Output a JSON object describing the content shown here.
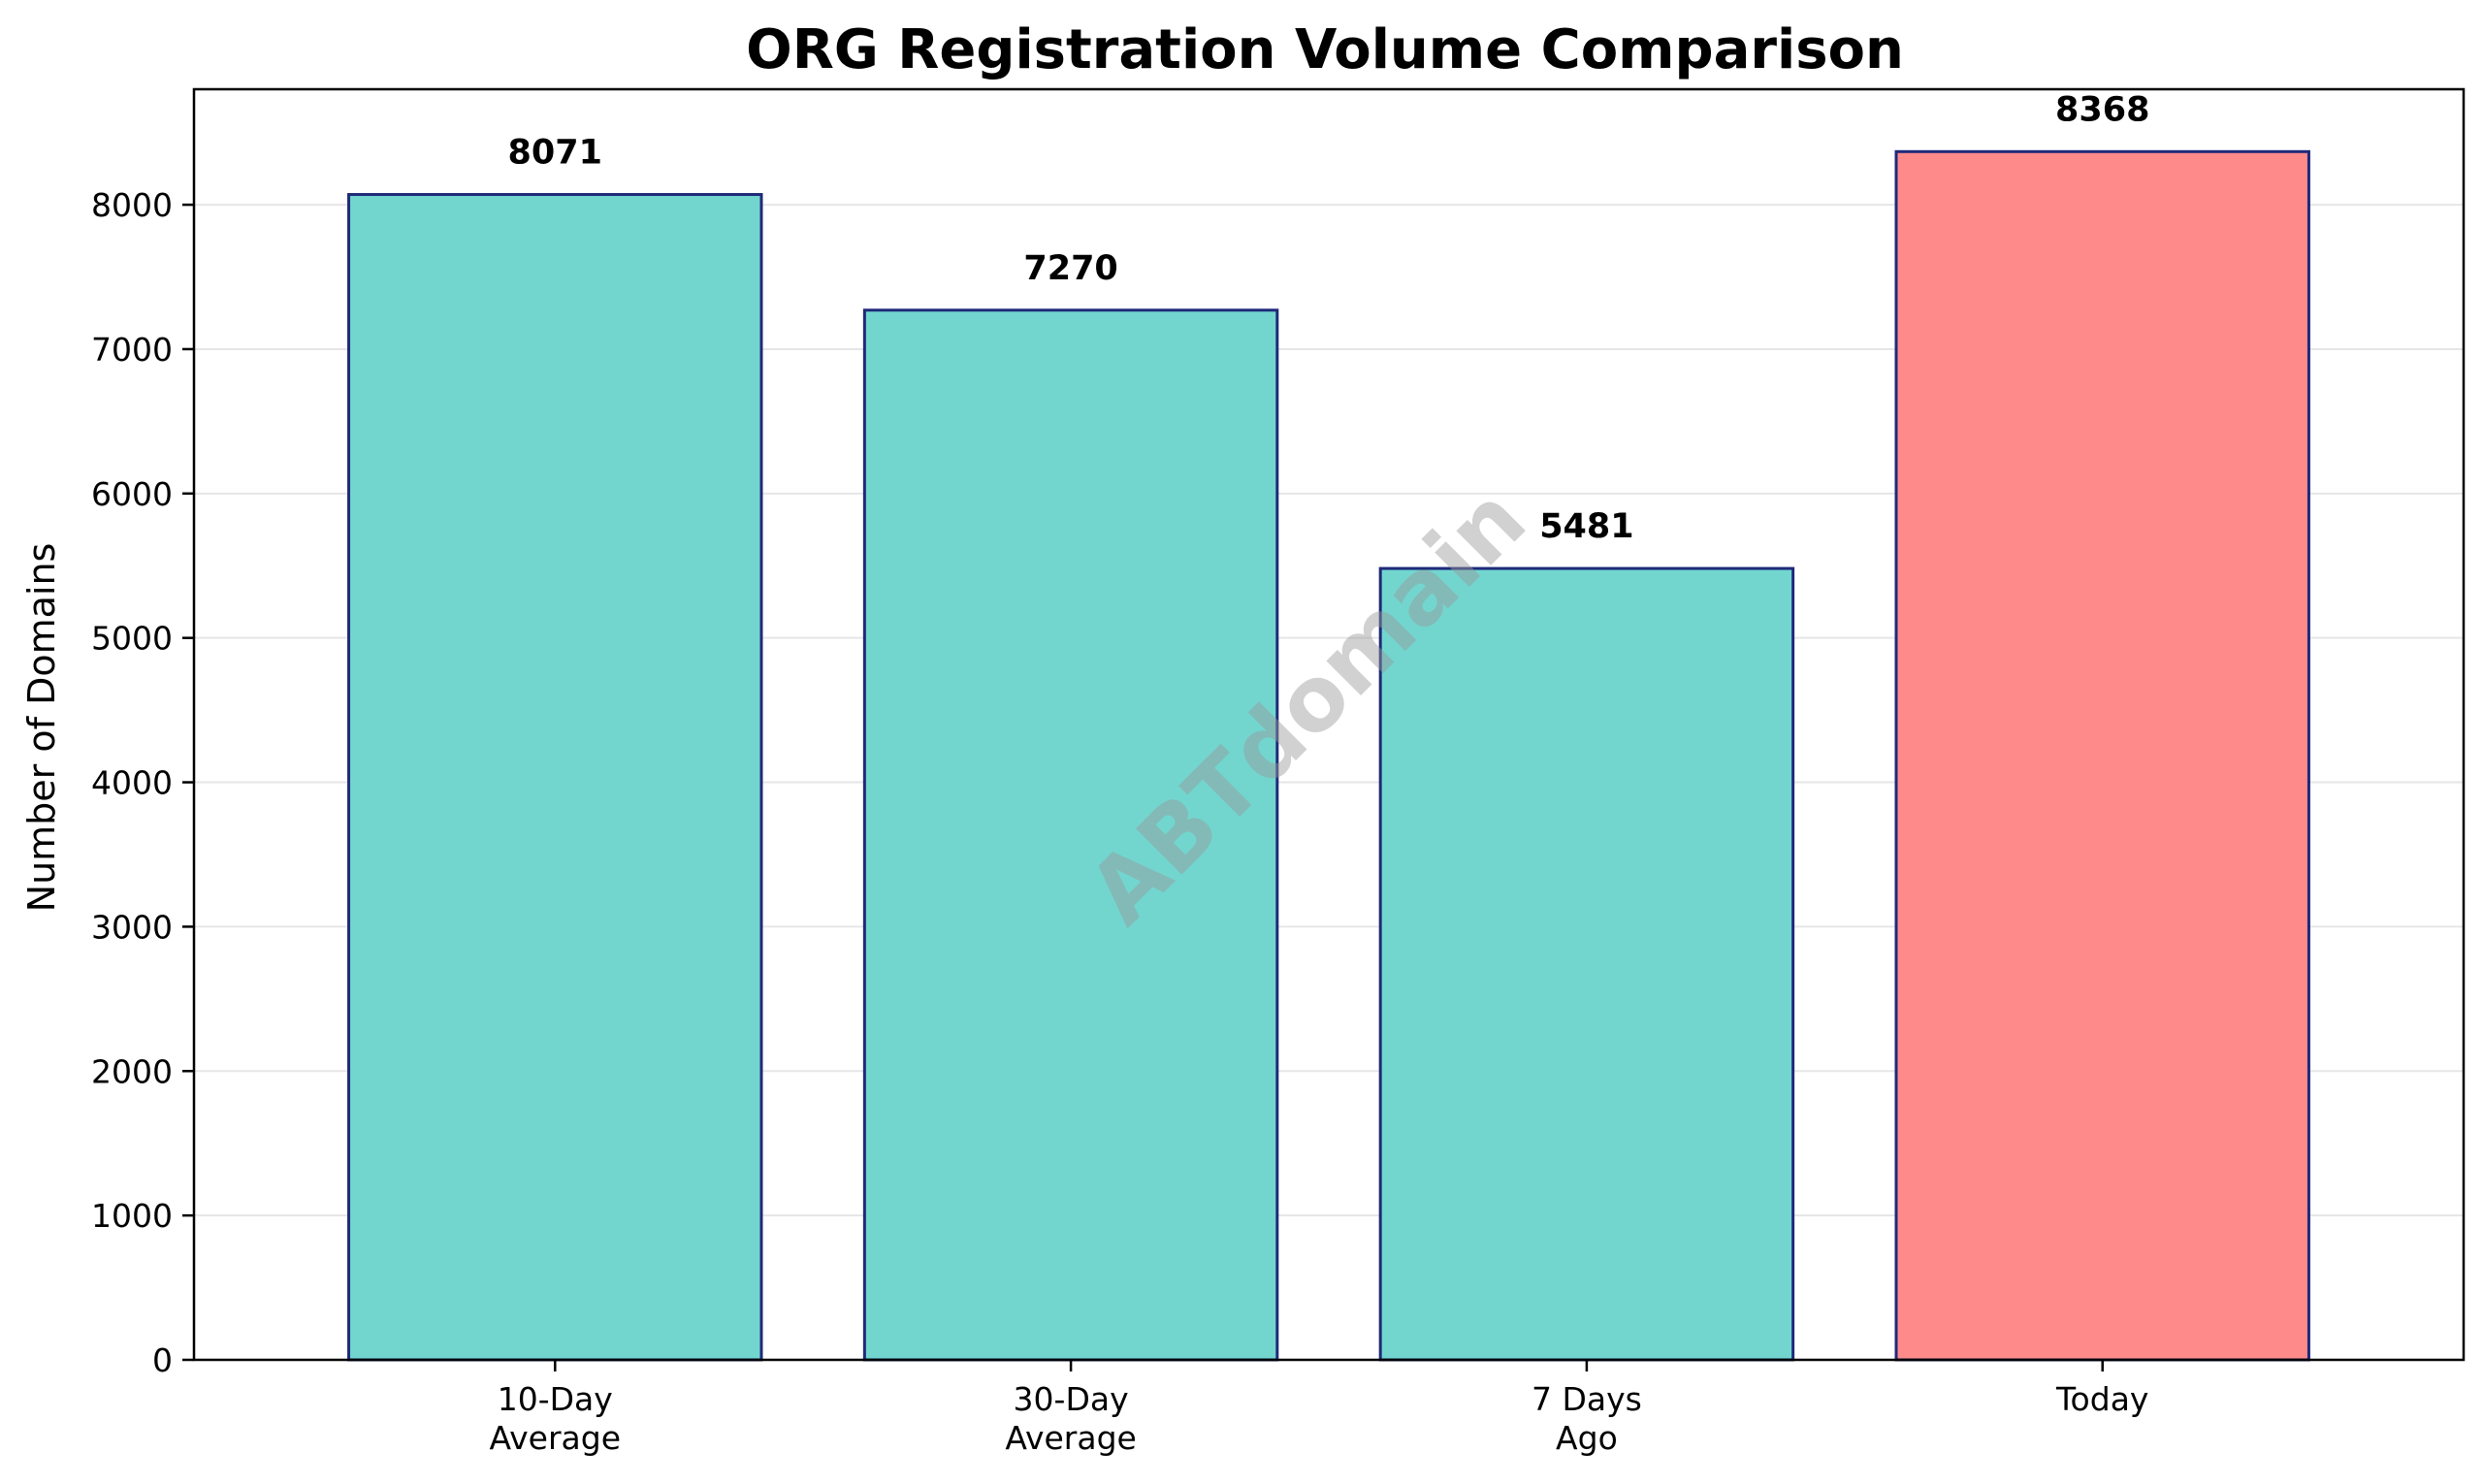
{
  "chart_data": {
    "type": "bar",
    "title": "ORG Registration Volume Comparison",
    "xlabel": "",
    "ylabel": "Number of Domains",
    "categories": [
      [
        "10-Day",
        "Average"
      ],
      [
        "30-Day",
        "Average"
      ],
      [
        "7 Days",
        "Ago"
      ],
      [
        "Today"
      ]
    ],
    "values": [
      8071,
      7270,
      5481,
      8368
    ],
    "ylim": [
      0,
      8800
    ],
    "yticks": [
      0,
      1000,
      2000,
      3000,
      4000,
      5000,
      6000,
      7000,
      8000
    ],
    "grid": "y",
    "legend": "none",
    "colors": {
      "bar_default": "#72D6CF",
      "bar_highlight": "#FF8A8A",
      "bar_edge": "#1F2A7A",
      "grid": "#e6e6e6",
      "axes": "#000000"
    },
    "highlight_index": 3,
    "watermark": "ABTdomain"
  }
}
